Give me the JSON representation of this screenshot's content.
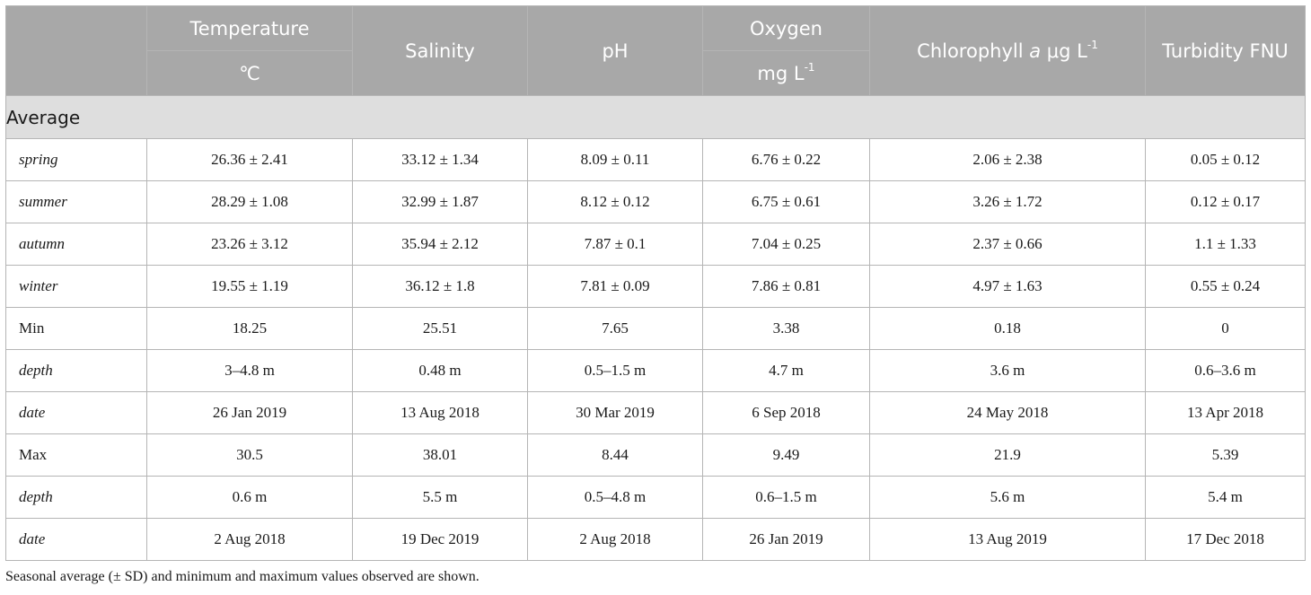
{
  "header": {
    "temperature": "Temperature",
    "temperature_unit": "℃",
    "salinity": "Salinity",
    "ph": "pH",
    "oxygen": "Oxygen",
    "oxygen_unit": "mg L",
    "oxygen_unit_sup": "-1",
    "chlorophyll_prefix": "Chlorophyll ",
    "chlorophyll_italic": "a",
    "chlorophyll_unit": " μg L",
    "chlorophyll_unit_sup": "-1",
    "turbidity": "Turbidity FNU"
  },
  "section": "Average",
  "rows": [
    {
      "label": "spring",
      "italic": true,
      "values": [
        "26.36 ± 2.41",
        "33.12 ± 1.34",
        "8.09 ± 0.11",
        "6.76 ± 0.22",
        "2.06 ± 2.38",
        "0.05 ± 0.12"
      ]
    },
    {
      "label": "summer",
      "italic": true,
      "values": [
        "28.29 ± 1.08",
        "32.99 ± 1.87",
        "8.12 ± 0.12",
        "6.75 ± 0.61",
        "3.26 ± 1.72",
        "0.12 ± 0.17"
      ]
    },
    {
      "label": "autumn",
      "italic": true,
      "values": [
        "23.26 ± 3.12",
        "35.94 ± 2.12",
        "7.87 ± 0.1",
        "7.04 ± 0.25",
        "2.37 ± 0.66",
        "1.1 ± 1.33"
      ]
    },
    {
      "label": "winter",
      "italic": true,
      "values": [
        "19.55 ± 1.19",
        "36.12 ± 1.8",
        "7.81 ± 0.09",
        "7.86 ± 0.81",
        "4.97 ± 1.63",
        "0.55 ± 0.24"
      ]
    },
    {
      "label": "Min",
      "italic": false,
      "values": [
        "18.25",
        "25.51",
        "7.65",
        "3.38",
        "0.18",
        "0"
      ]
    },
    {
      "label": "depth",
      "italic": true,
      "values": [
        "3–4.8 m",
        "0.48 m",
        "0.5–1.5 m",
        "4.7 m",
        "3.6 m",
        "0.6–3.6 m"
      ]
    },
    {
      "label": "date",
      "italic": true,
      "values": [
        "26 Jan 2019",
        "13 Aug 2018",
        "30 Mar 2019",
        "6 Sep 2018",
        "24 May 2018",
        "13 Apr 2018"
      ]
    },
    {
      "label": "Max",
      "italic": false,
      "values": [
        "30.5",
        "38.01",
        "8.44",
        "9.49",
        "21.9",
        "5.39"
      ]
    },
    {
      "label": "depth",
      "italic": true,
      "values": [
        "0.6 m",
        "5.5 m",
        "0.5–4.8 m",
        "0.6–1.5 m",
        "5.6 m",
        "5.4 m"
      ]
    },
    {
      "label": "date",
      "italic": true,
      "values": [
        "2 Aug 2018",
        "19 Dec 2019",
        "2 Aug 2018",
        "26 Jan 2019",
        "13 Aug 2019",
        "17 Dec 2018"
      ]
    }
  ],
  "footnote": "Seasonal average (± SD) and minimum and maximum values observed are shown."
}
